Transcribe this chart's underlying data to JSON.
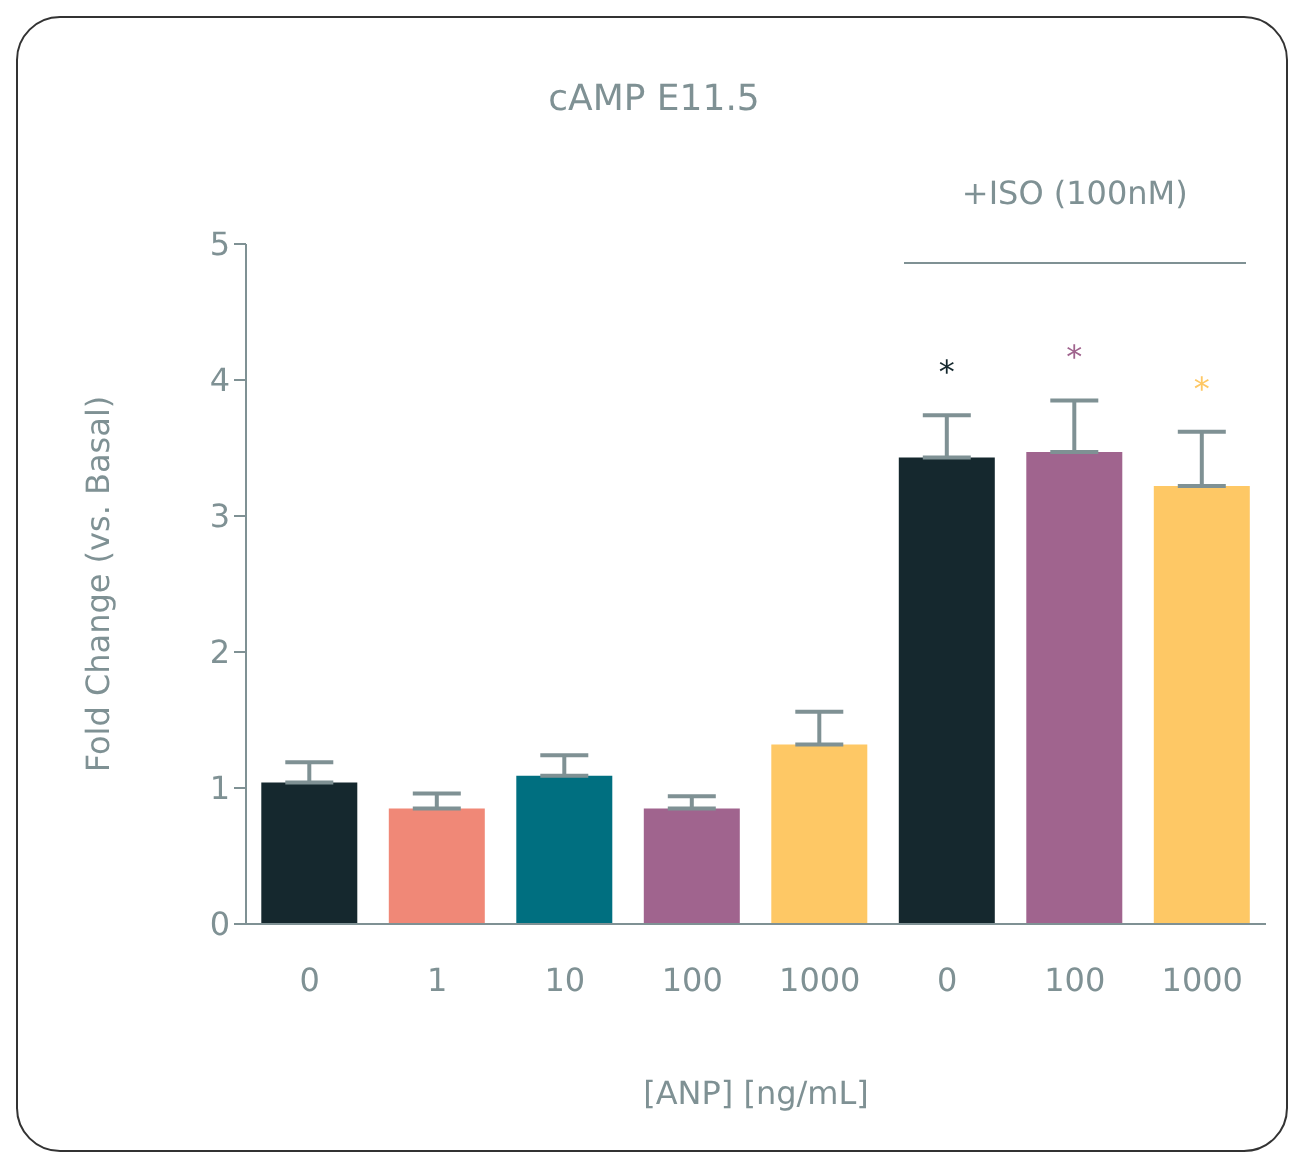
{
  "chart_data": {
    "type": "bar",
    "title": "cAMP E11.5",
    "xlabel": "[ANP] [ng/mL]",
    "ylabel": "Fold Change (vs. Basal)",
    "categories": [
      "0",
      "1",
      "10",
      "100",
      "1000",
      "0",
      "100",
      "1000"
    ],
    "values": [
      1.04,
      0.85,
      1.09,
      0.85,
      1.32,
      3.43,
      3.47,
      3.22
    ],
    "colors": [
      "#15282e",
      "#f08877",
      "#006f80",
      "#a0648e",
      "#fec865",
      "#15282e",
      "#a0648e",
      "#fec865"
    ],
    "errors": [
      [
        1.04,
        1.19
      ],
      [
        0.85,
        0.96
      ],
      [
        1.09,
        1.24
      ],
      [
        0.85,
        0.94
      ],
      [
        1.32,
        1.56
      ],
      [
        3.43,
        3.74
      ],
      [
        3.47,
        3.85
      ],
      [
        3.22,
        3.62
      ]
    ],
    "value_labels": [
      null,
      null,
      null,
      null,
      null,
      "*",
      "*",
      "*"
    ],
    "annotations": [
      "+ISO (100nM)"
    ],
    "ylim": [
      0,
      5
    ],
    "yticks": [
      0,
      1,
      2,
      3,
      4,
      5
    ]
  }
}
